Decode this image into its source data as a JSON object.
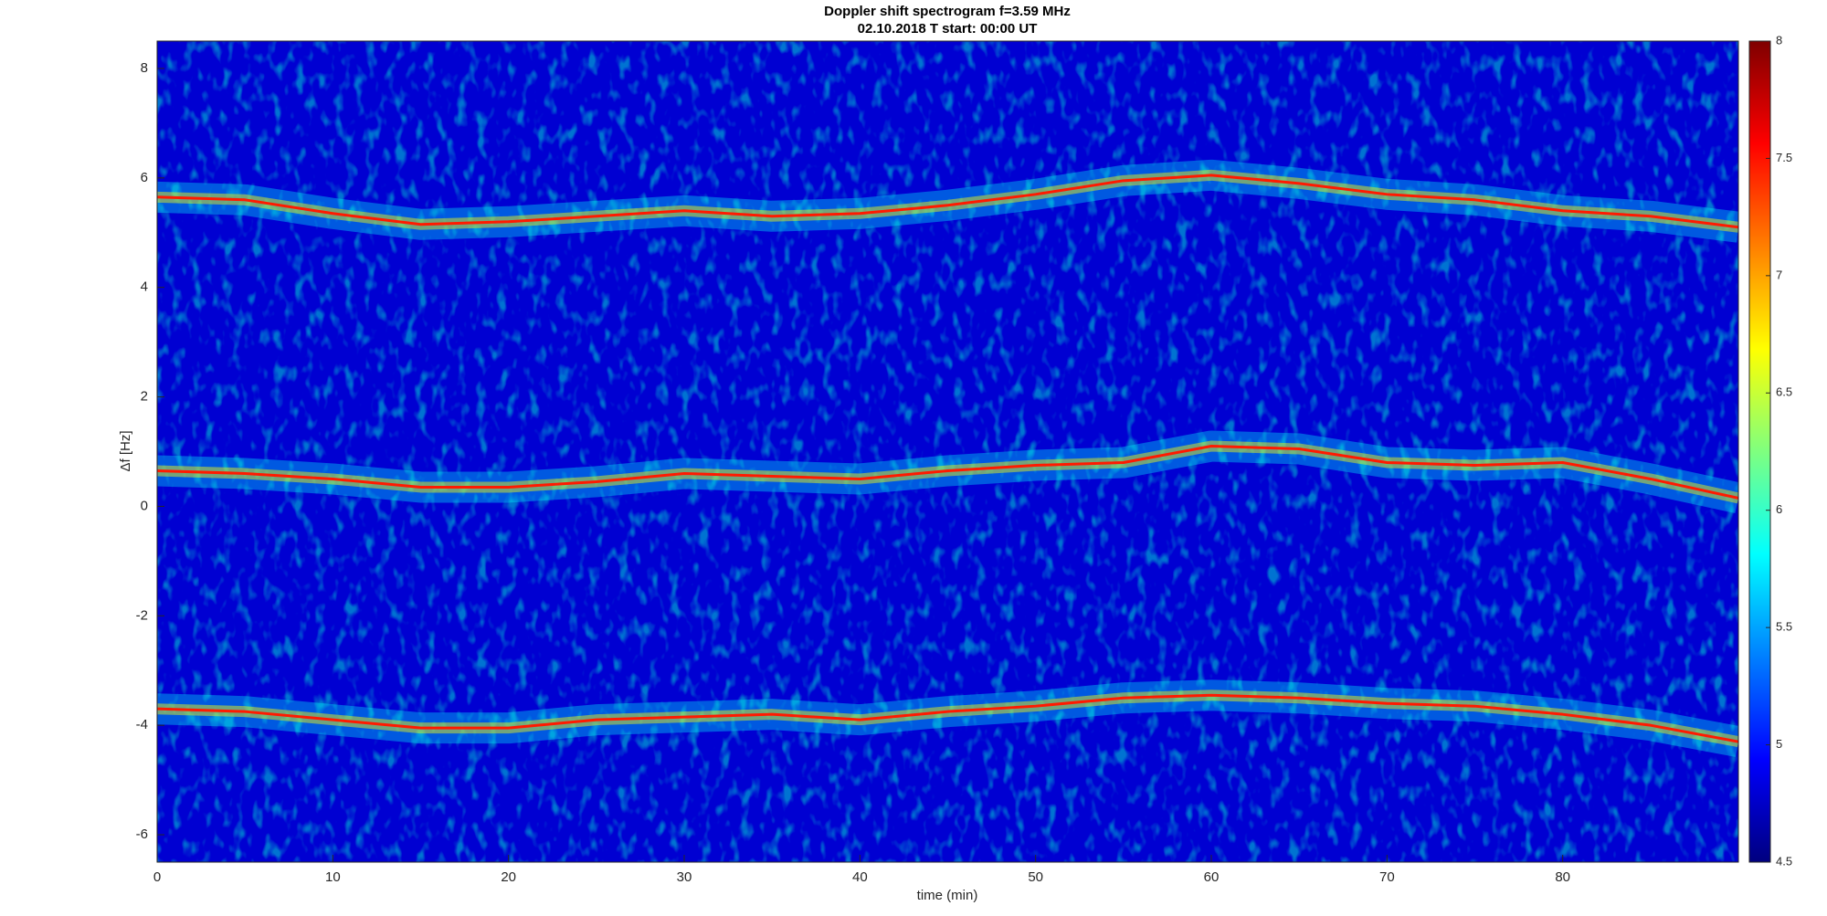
{
  "chart_data": {
    "type": "spectrogram",
    "title": "Doppler shift spectrogram f=3.59 MHz",
    "subtitle": "02.10.2018   T start: 00:00 UT",
    "x_label": "time (min)",
    "y_label": "Δf [Hz]",
    "xlim": [
      0,
      90
    ],
    "xticks": [
      0,
      10,
      20,
      30,
      40,
      50,
      60,
      70,
      80
    ],
    "ylim": [
      -6.5,
      8.5
    ],
    "yticks": [
      -6,
      -4,
      -2,
      0,
      2,
      4,
      6,
      8
    ],
    "x": [
      0,
      5,
      10,
      15,
      20,
      25,
      30,
      35,
      40,
      45,
      50,
      55,
      60,
      65,
      70,
      75,
      80,
      85,
      90
    ],
    "series": [
      {
        "color": "#ff1a00",
        "values": [
          5.65,
          5.6,
          5.35,
          5.15,
          5.2,
          5.3,
          5.4,
          5.3,
          5.35,
          5.5,
          5.7,
          5.95,
          6.05,
          5.9,
          5.7,
          5.6,
          5.4,
          5.3,
          5.1
        ]
      },
      {
        "color": "#ff1a00",
        "values": [
          0.65,
          0.6,
          0.5,
          0.35,
          0.35,
          0.45,
          0.6,
          0.55,
          0.5,
          0.65,
          0.75,
          0.8,
          1.1,
          1.05,
          0.8,
          0.75,
          0.8,
          0.5,
          0.15
        ]
      },
      {
        "color": "#ff1a00",
        "values": [
          -3.7,
          -3.75,
          -3.9,
          -4.05,
          -4.05,
          -3.9,
          -3.85,
          -3.8,
          -3.9,
          -3.75,
          -3.65,
          -3.5,
          -3.45,
          -3.5,
          -3.6,
          -3.65,
          -3.8,
          -4.0,
          -4.3
        ]
      }
    ],
    "colorbar": {
      "lim": [
        4.5,
        8
      ],
      "ticks": [
        4.5,
        5,
        5.5,
        6,
        6.5,
        7,
        7.5,
        8
      ],
      "colormap": [
        "#00007f",
        "#0000ff",
        "#007fff",
        "#00ffff",
        "#7fff7f",
        "#ffff00",
        "#ff7f00",
        "#ff0000",
        "#7f0000"
      ]
    }
  }
}
